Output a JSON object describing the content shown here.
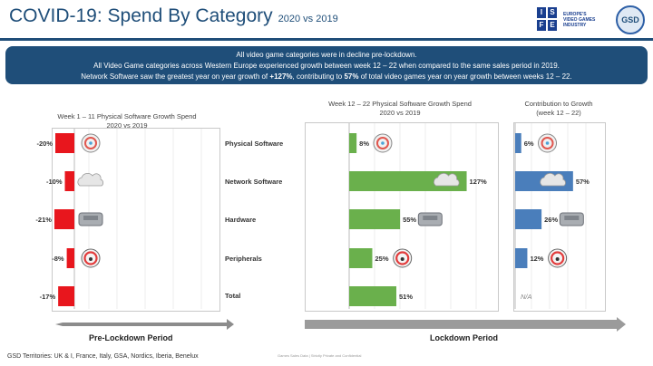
{
  "header": {
    "title": "COVID-19: Spend By Category",
    "subtitle": "2020 vs 2019",
    "logo_isfe_letters": [
      "I",
      "S",
      "F",
      "E"
    ],
    "logo_isfe_text": [
      "EUROPE'S",
      "VIDEO GAMES",
      "INDUSTRY"
    ],
    "logo_gsd": "GSD"
  },
  "banner": {
    "line1": "All video game categories were in decline pre-lockdown.",
    "line2": "All Video Game categories across Western Europe experienced growth between week 12 – 22 when compared to the same sales period in 2019.",
    "line3_a": "Network Software saw the greatest year on year growth of ",
    "line3_b": "+127%",
    "line3_c": ", contributing to ",
    "line3_d": "57%",
    "line3_e": " of total video games year on year growth between weeks 12 – 22."
  },
  "panels": {
    "pre": {
      "line1": "Week 1 – 11 Physical Software Growth Spend",
      "line2": "2020 vs 2019"
    },
    "lock": {
      "line1": "Week 12 – 22 Physical Software Growth Spend",
      "line2": "2020 vs 2019"
    },
    "contrib": {
      "line1": "Contribution to Growth",
      "line2": "(week 12 – 22)"
    }
  },
  "periods": {
    "pre": "Pre-Lockdown Period",
    "lock": "Lockdown Period"
  },
  "footer": {
    "territories": "GSD Territories: UK & I, France, Italy, GSA, Nordics, Iberia, Benelux",
    "confidential": "Games Sales Data | Strictly Private and Confidential"
  },
  "chart_data": {
    "type": "bar",
    "categories": [
      "Physical Software",
      "Network Software",
      "Hardware",
      "Peripherals",
      "Total"
    ],
    "icons": [
      "disc-icon",
      "cloud-icon",
      "console-icon",
      "steering-wheel-icon",
      null
    ],
    "series": [
      {
        "values": [
          -20,
          -10,
          -21,
          -8,
          -17
        ],
        "labels": [
          "-20%",
          "-10%",
          "-21%",
          "-8%",
          "-17%"
        ],
        "color": "#e8161d"
      },
      {
        "values": [
          8,
          127,
          55,
          25,
          51
        ],
        "labels": [
          "8%",
          "127%",
          "55%",
          "25%",
          "51%"
        ],
        "color": "#6ab04c"
      },
      {
        "values": [
          6,
          57,
          26,
          12,
          null
        ],
        "labels": [
          "6%",
          "57%",
          "26%",
          "12%",
          "N/A"
        ],
        "color": "#4a7ebb"
      }
    ]
  }
}
